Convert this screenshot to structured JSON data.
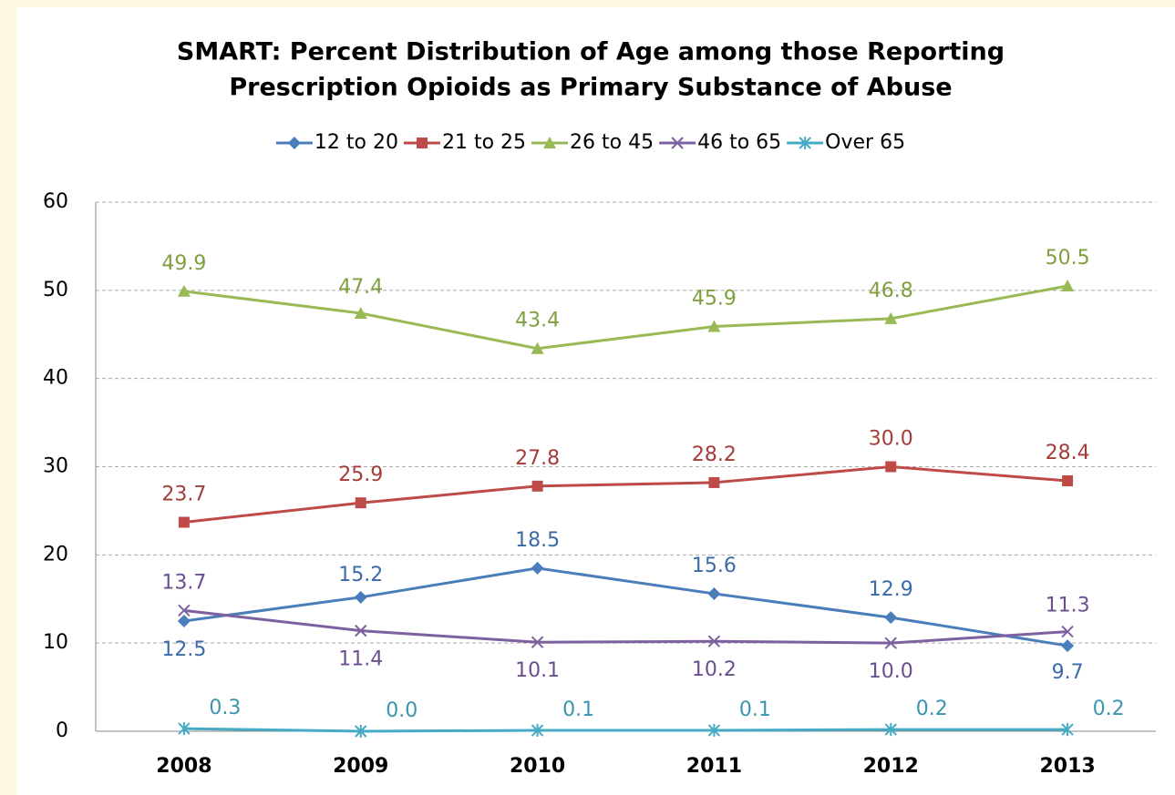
{
  "chart_data": {
    "type": "line",
    "title": [
      "SMART: Percent Distribution of Age among those Reporting",
      "Prescription Opioids as Primary Substance of Abuse"
    ],
    "categories": [
      "2008",
      "2009",
      "2010",
      "2011",
      "2012",
      "2013"
    ],
    "series": [
      {
        "name": "12 to 20",
        "color": "#4a7ebb",
        "values": [
          12.5,
          15.2,
          18.5,
          15.6,
          12.9,
          9.7
        ],
        "value_labels": [
          "12.5",
          "15.2",
          "18.5",
          "15.6",
          "12.9",
          "9.7"
        ]
      },
      {
        "name": "21 to 25",
        "color": "#be4b48",
        "values": [
          23.7,
          25.9,
          27.8,
          28.2,
          30.0,
          28.4
        ],
        "value_labels": [
          "23.7",
          "25.9",
          "27.8",
          "28.2",
          "30.0",
          "28.4"
        ]
      },
      {
        "name": "26 to 45",
        "color": "#98b954",
        "values": [
          49.9,
          47.4,
          43.4,
          45.9,
          46.8,
          50.5
        ],
        "value_labels": [
          "49.9",
          "47.4",
          "43.4",
          "45.9",
          "46.8",
          "50.5"
        ]
      },
      {
        "name": "46 to 65",
        "color": "#7d60a0",
        "values": [
          13.7,
          11.4,
          10.1,
          10.2,
          10.0,
          11.3
        ],
        "value_labels": [
          "13.7",
          "11.4",
          "10.1",
          "10.2",
          "10.0",
          "11.3"
        ]
      },
      {
        "name": "Over 65",
        "color": "#46aac5",
        "values": [
          0.3,
          0.0,
          0.1,
          0.1,
          0.2,
          0.2
        ],
        "value_labels": [
          "0.3",
          "0.0",
          "0.1",
          "0.1",
          "0.2",
          "0.2"
        ]
      }
    ],
    "ylim": [
      0,
      60
    ],
    "yticks": [
      0,
      10,
      20,
      30,
      40,
      50,
      60
    ],
    "grid": true,
    "legend": "top"
  }
}
